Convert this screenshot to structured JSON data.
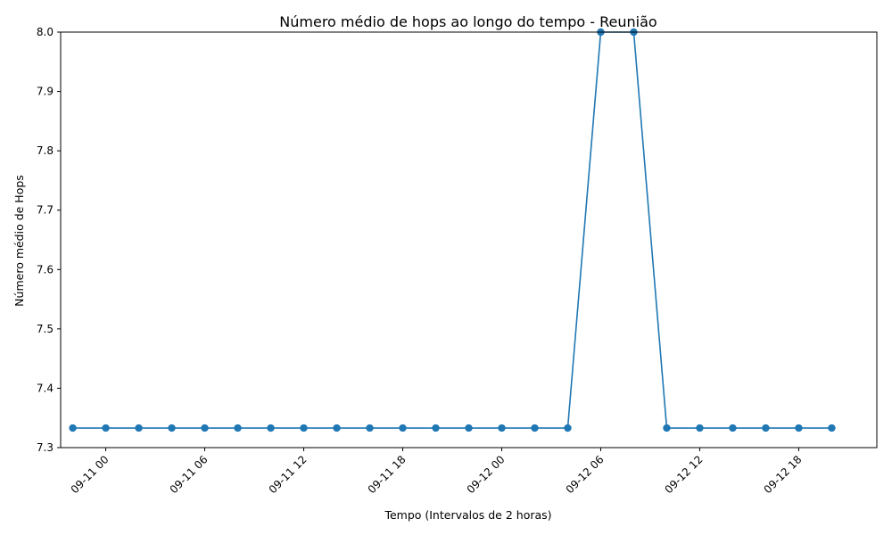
{
  "chart_data": {
    "type": "line",
    "title": "Número médio de hops ao longo do tempo - Reunião",
    "xlabel": "Tempo (Intervalos de 2 horas)",
    "ylabel": "Número médio de Hops",
    "x_tick_labels": [
      "09-11 00",
      "09-11 06",
      "09-11 12",
      "09-11 18",
      "09-12 00",
      "09-12 06",
      "09-12 12",
      "09-12 18"
    ],
    "y_tick_labels": [
      "7.3",
      "7.4",
      "7.5",
      "7.6",
      "7.7",
      "7.8",
      "7.9",
      "8.0"
    ],
    "ylim": [
      7.3,
      8.0
    ],
    "xlim": [
      "09-10 21:16",
      "09-12 22:44"
    ],
    "grid": false,
    "series_color": "#1f77b4",
    "x": [
      "09-10 22:00",
      "09-11 00:00",
      "09-11 02:00",
      "09-11 04:00",
      "09-11 06:00",
      "09-11 08:00",
      "09-11 10:00",
      "09-11 12:00",
      "09-11 14:00",
      "09-11 16:00",
      "09-11 18:00",
      "09-11 20:00",
      "09-11 22:00",
      "09-12 00:00",
      "09-12 02:00",
      "09-12 04:00",
      "09-12 06:00",
      "09-12 08:00",
      "09-12 10:00",
      "09-12 12:00",
      "09-12 14:00",
      "09-12 16:00",
      "09-12 18:00",
      "09-12 20:00"
    ],
    "values": [
      7.333,
      7.333,
      7.333,
      7.333,
      7.333,
      7.333,
      7.333,
      7.333,
      7.333,
      7.333,
      7.333,
      7.333,
      7.333,
      7.333,
      7.333,
      7.333,
      8.0,
      8.0,
      7.333,
      7.333,
      7.333,
      7.333,
      7.333,
      7.333
    ]
  }
}
